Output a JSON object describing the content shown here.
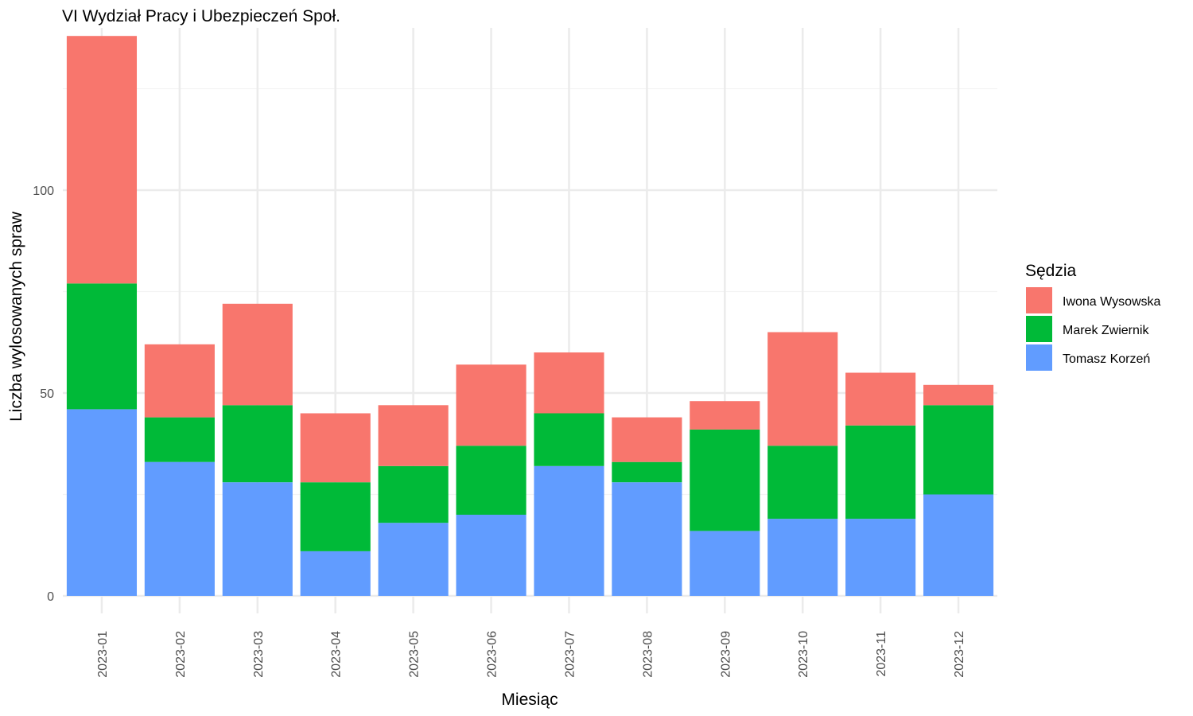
{
  "chart_data": {
    "type": "bar",
    "stacked": true,
    "title": "VI Wydział Pracy i Ubezpieczeń Społ.",
    "xlabel": "Miesiąc",
    "ylabel": "Liczba wylosowanych spraw",
    "categories": [
      "2023-01",
      "2023-02",
      "2023-03",
      "2023-04",
      "2023-05",
      "2023-06",
      "2023-07",
      "2023-08",
      "2023-09",
      "2023-10",
      "2023-11",
      "2023-12"
    ],
    "series": [
      {
        "name": "Tomasz Korzeń",
        "color": "#619CFF",
        "values": [
          46,
          33,
          28,
          11,
          18,
          20,
          32,
          28,
          16,
          19,
          19,
          25
        ]
      },
      {
        "name": "Marek Zwiernik",
        "color": "#00BA38",
        "values": [
          31,
          11,
          19,
          17,
          14,
          17,
          13,
          5,
          25,
          18,
          23,
          22
        ]
      },
      {
        "name": "Iwona Wysowska",
        "color": "#F8766D",
        "values": [
          61,
          18,
          25,
          17,
          15,
          20,
          15,
          11,
          7,
          28,
          13,
          5
        ]
      }
    ],
    "yticks": [
      0,
      50,
      100
    ],
    "ylim": [
      0,
      140
    ],
    "grid": true,
    "legend": {
      "title": "Sędzia",
      "position": "right",
      "items": [
        "Iwona Wysowska",
        "Marek Zwiernik",
        "Tomasz Korzeń"
      ]
    }
  }
}
